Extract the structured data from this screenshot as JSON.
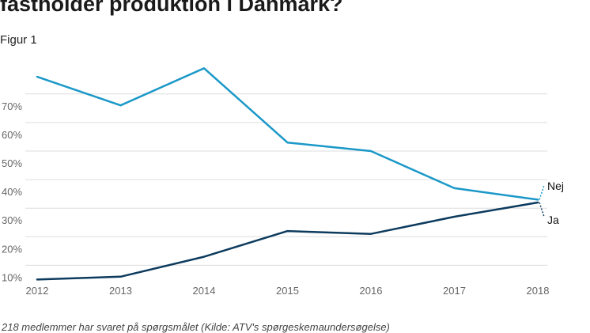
{
  "header": {
    "title": "fastholder produktion i Danmark?",
    "subtitle": "Figur 1"
  },
  "footer": {
    "note": "218 medlemmer har svaret på spørgsmålet (Kilde: ATV's spørgeskemaundersøgelse)"
  },
  "colors": {
    "nej": "#1b98c8",
    "ja": "#0d3b5e",
    "grid": "#dddddd"
  },
  "chart_data": {
    "type": "line",
    "x": [
      2012,
      2013,
      2014,
      2015,
      2016,
      2017,
      2018
    ],
    "series": [
      {
        "name": "Nej",
        "values": [
          76,
          66,
          79,
          53,
          50,
          37,
          33
        ]
      },
      {
        "name": "Ja",
        "values": [
          5,
          6,
          13,
          22,
          21,
          27,
          32
        ]
      }
    ],
    "y_ticks": [
      "10%",
      "20%",
      "30%",
      "40%",
      "50%",
      "60%",
      "70%"
    ],
    "x_ticks": [
      "2012",
      "2013",
      "2014",
      "2015",
      "2016",
      "2017",
      "2018"
    ],
    "ylim": [
      0,
      80
    ],
    "grid": true,
    "legend": "direct labels at line ends"
  }
}
